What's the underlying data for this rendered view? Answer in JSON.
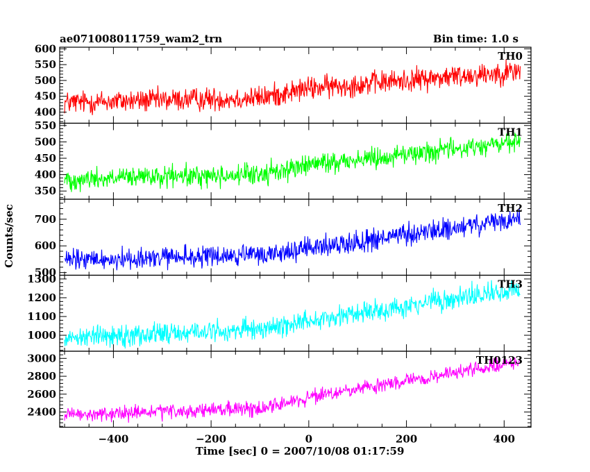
{
  "header": {
    "title": "ae071008011759_wam2_trn",
    "bin_time": "Bin time: 1.0 s"
  },
  "colors": {
    "TH0": "#ff0000",
    "TH1": "#00ff00",
    "TH2": "#0000ff",
    "TH3": "#00ffff",
    "TH0123": "#ff00ff"
  },
  "chart_data": {
    "type": "line",
    "xlabel": "Time [sec] 0 = 2007/10/08 01:17:59",
    "ylabel": "Counts/sec",
    "xlim": [
      -510,
      455
    ],
    "x_range": [
      -500,
      433
    ],
    "x_step": 1,
    "x_ticks": [
      -400,
      -200,
      0,
      200,
      400
    ],
    "x_tick_labels": [
      "−400",
      "−200",
      "0",
      "200",
      "400"
    ],
    "grid": false,
    "panels": [
      {
        "name": "TH0",
        "ylim": [
          365,
          605
        ],
        "y_ticks": [
          400,
          450,
          500,
          550,
          600
        ],
        "trend": [
          [
            -500,
            430
          ],
          [
            -100,
            445
          ],
          [
            0,
            475
          ],
          [
            433,
            530
          ]
        ],
        "noise_amplitude": 32
      },
      {
        "name": "TH1",
        "ylim": [
          325,
          557
        ],
        "y_ticks": [
          350,
          400,
          450,
          500,
          550
        ],
        "trend": [
          [
            -500,
            385
          ],
          [
            -100,
            400
          ],
          [
            0,
            430
          ],
          [
            433,
            500
          ]
        ],
        "noise_amplitude": 28
      },
      {
        "name": "TH2",
        "ylim": [
          490,
          775
        ],
        "y_ticks": [
          500,
          600,
          700
        ],
        "trend": [
          [
            -500,
            545
          ],
          [
            -100,
            565
          ],
          [
            0,
            590
          ],
          [
            433,
            700
          ]
        ],
        "noise_amplitude": 35
      },
      {
        "name": "TH3",
        "ylim": [
          915,
          1320
        ],
        "y_ticks": [
          1000,
          1100,
          1200,
          1300
        ],
        "trend": [
          [
            -500,
            990
          ],
          [
            -100,
            1030
          ],
          [
            0,
            1080
          ],
          [
            433,
            1245
          ]
        ],
        "noise_amplitude": 50
      },
      {
        "name": "TH0123",
        "ylim": [
          2230,
          3080
        ],
        "y_ticks": [
          2400,
          2600,
          2800,
          3000
        ],
        "trend": [
          [
            -500,
            2360
          ],
          [
            -100,
            2440
          ],
          [
            0,
            2560
          ],
          [
            433,
            2960
          ]
        ],
        "noise_amplitude": 70
      }
    ]
  }
}
